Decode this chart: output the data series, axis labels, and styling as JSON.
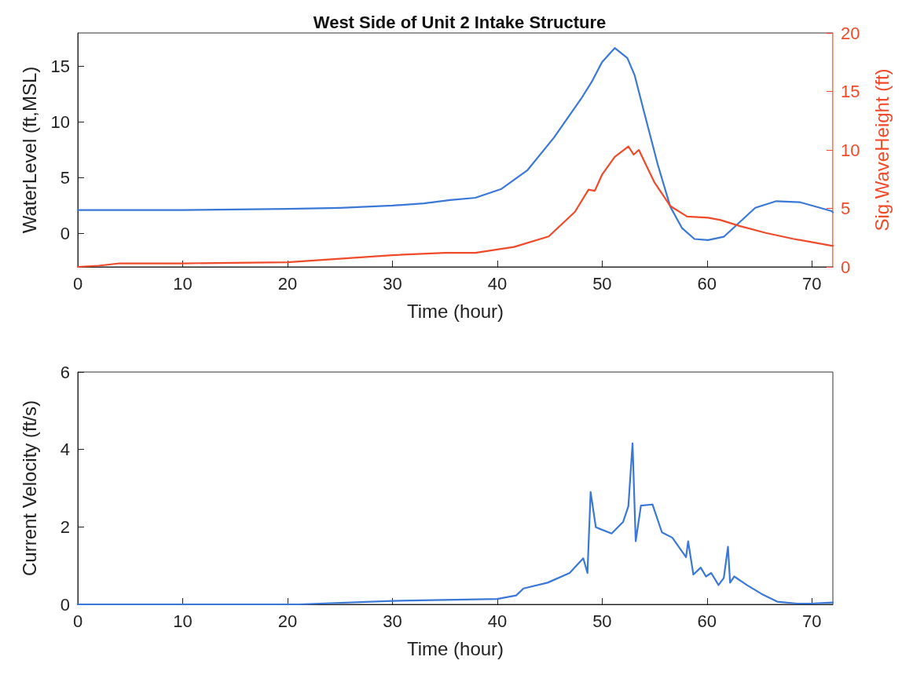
{
  "chart_data": [
    {
      "type": "line",
      "title": "West Side of Unit 2 Intake Structure",
      "xlabel": "Time (hour)",
      "ylabel": "WaterLevel (ft,MSL)",
      "y2label": "Sig.WaveHeight (ft)",
      "xlim": [
        0,
        72
      ],
      "xticks": [
        0,
        10,
        20,
        30,
        40,
        50,
        60,
        70
      ],
      "ylim": [
        -3,
        18
      ],
      "yticks": [
        0,
        5,
        10,
        15
      ],
      "y2lim": [
        0,
        20
      ],
      "y2ticks": [
        0,
        5,
        10,
        15,
        20
      ],
      "grid": false,
      "marker": "none",
      "line_style": "solid",
      "series": [
        {
          "color": "#3a78d8",
          "x": [
            0,
            10,
            20,
            25,
            30,
            33,
            35.5,
            37.9,
            40.4,
            42.9,
            45.4,
            48.0,
            49.0,
            50.0,
            51.2,
            52.4,
            53.1,
            54.0,
            55.3,
            56.5,
            57.6,
            58.8,
            60.1,
            61.6,
            63.1,
            64.6,
            66.6,
            68.9,
            71.9,
            72
          ],
          "values": [
            2.1,
            2.1,
            2.2,
            2.3,
            2.5,
            2.7,
            3.0,
            3.2,
            4.0,
            5.7,
            8.6,
            12.1,
            13.6,
            15.4,
            16.65,
            15.75,
            14.2,
            10.9,
            6.2,
            2.4,
            0.5,
            -0.5,
            -0.6,
            -0.3,
            1.0,
            2.3,
            2.9,
            2.8,
            2.0,
            1.9
          ]
        },
        {
          "color": "#f04a2a",
          "axis": "y2",
          "x": [
            0,
            2,
            4,
            10,
            20,
            25,
            30,
            35,
            37.9,
            41.6,
            44.9,
            47.4,
            48.7,
            49.3,
            50.0,
            51.2,
            52.5,
            53.0,
            53.5,
            55.0,
            56.5,
            58.1,
            60.1,
            61.3,
            63.1,
            65.6,
            68.2,
            71.9,
            72
          ],
          "values": [
            0,
            0.1,
            0.3,
            0.3,
            0.4,
            0.7,
            1.0,
            1.2,
            1.2,
            1.7,
            2.6,
            4.7,
            6.6,
            6.5,
            7.9,
            9.4,
            10.3,
            9.6,
            10.0,
            7.2,
            5.2,
            4.3,
            4.2,
            4.0,
            3.5,
            2.9,
            2.4,
            1.8,
            1.8
          ]
        }
      ]
    },
    {
      "type": "line",
      "xlabel": "Time (hour)",
      "ylabel": "Current Velocity (ft/s)",
      "xlim": [
        0,
        72
      ],
      "xticks": [
        0,
        10,
        20,
        30,
        40,
        50,
        60,
        70
      ],
      "ylim": [
        0,
        6
      ],
      "yticks": [
        0,
        2,
        4,
        6
      ],
      "grid": false,
      "marker": "none",
      "line_style": "solid",
      "series": [
        {
          "color": "#3a78d8",
          "x": [
            0,
            10,
            20,
            21.1,
            30,
            40,
            41.8,
            42.5,
            44.8,
            46.9,
            48.2,
            48.6,
            48.9,
            49.4,
            50.9,
            52.0,
            52.5,
            52.9,
            53.2,
            53.7,
            54.8,
            55.7,
            56.7,
            58.0,
            58.2,
            58.7,
            59.4,
            59.9,
            60.4,
            61.1,
            61.6,
            62.0,
            62.2,
            62.6,
            63.8,
            65.2,
            66.7,
            68.6,
            69.9,
            72
          ],
          "values": [
            0,
            0,
            0,
            0,
            0.09,
            0.14,
            0.23,
            0.41,
            0.56,
            0.81,
            1.19,
            0.81,
            2.9,
            1.99,
            1.83,
            2.13,
            2.53,
            4.16,
            1.63,
            2.55,
            2.58,
            1.86,
            1.72,
            1.22,
            1.63,
            0.77,
            0.95,
            0.72,
            0.81,
            0.5,
            0.68,
            1.49,
            0.56,
            0.72,
            0.5,
            0.27,
            0.07,
            0.02,
            0.02,
            0.05
          ]
        }
      ]
    }
  ]
}
